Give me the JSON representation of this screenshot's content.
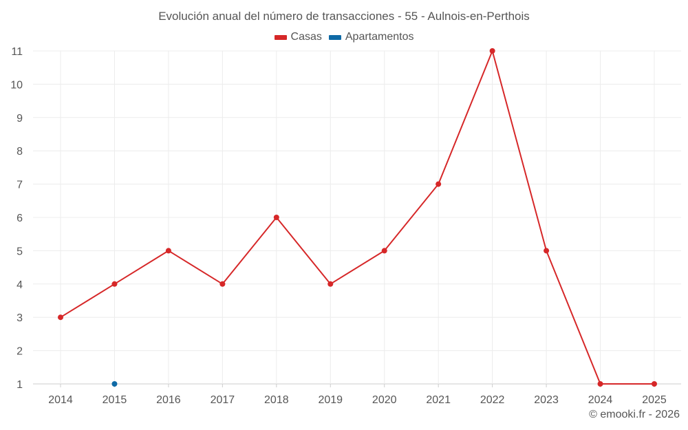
{
  "chart_data": {
    "type": "line",
    "title": "Evolución anual del número de transacciones - 55 - Aulnois-en-Perthois",
    "xlabel": "",
    "ylabel": "",
    "categories": [
      "2014",
      "2015",
      "2016",
      "2017",
      "2018",
      "2019",
      "2020",
      "2021",
      "2022",
      "2023",
      "2024",
      "2025"
    ],
    "yticks": [
      1,
      2,
      3,
      4,
      5,
      6,
      7,
      8,
      9,
      10,
      11
    ],
    "ylim": [
      1,
      11
    ],
    "grid": true,
    "legend_position": "top",
    "series": [
      {
        "name": "Casas",
        "color": "#d62728",
        "values": [
          3,
          4,
          5,
          4,
          6,
          4,
          5,
          7,
          11,
          5,
          1,
          1
        ]
      },
      {
        "name": "Apartamentos",
        "color": "#0f6aa6",
        "values": [
          null,
          1,
          null,
          null,
          null,
          null,
          null,
          null,
          null,
          null,
          null,
          null
        ]
      }
    ]
  },
  "credit": "© emooki.fr - 2026"
}
